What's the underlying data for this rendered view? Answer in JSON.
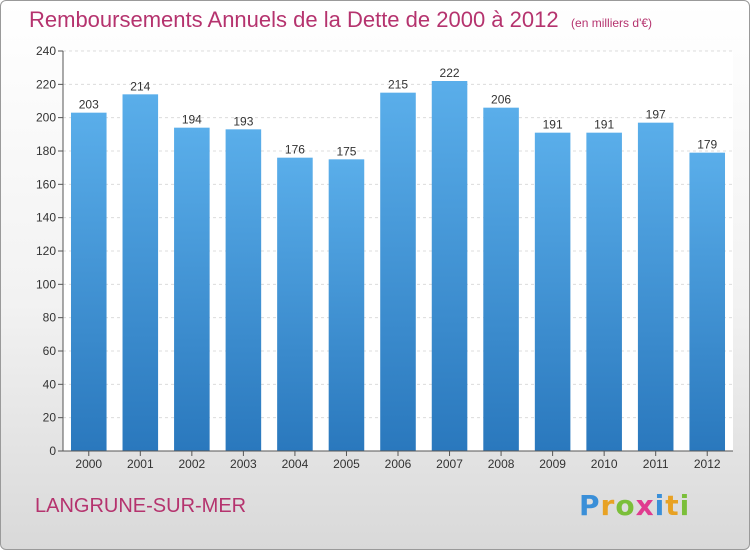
{
  "chart_data": {
    "type": "bar",
    "title": "Remboursements Annuels de la Dette de 2000 à 2012",
    "unit_note": "(en milliers d'€)",
    "categories": [
      "2000",
      "2001",
      "2002",
      "2003",
      "2004",
      "2005",
      "2006",
      "2007",
      "2008",
      "2009",
      "2010",
      "2011",
      "2012"
    ],
    "values": [
      203,
      214,
      194,
      193,
      176,
      175,
      215,
      222,
      206,
      191,
      191,
      197,
      179
    ],
    "ylim": [
      0,
      240
    ],
    "yticks": [
      0,
      20,
      40,
      60,
      80,
      100,
      120,
      140,
      160,
      180,
      200,
      220,
      240
    ],
    "grid": true,
    "bar_color_top": "#5aaeea",
    "bar_color_bottom": "#2a78bd"
  },
  "footer": {
    "commune": "LANGRUNE-SUR-MER",
    "logo_letters": [
      {
        "ch": "P",
        "color": "#3a8fd8"
      },
      {
        "ch": "r",
        "color": "#e8a224"
      },
      {
        "ch": "o",
        "color": "#7bbf3a"
      },
      {
        "ch": "x",
        "color": "#e03b8f"
      },
      {
        "ch": "i",
        "color": "#3a8fd8"
      },
      {
        "ch": "t",
        "color": "#e8a224"
      },
      {
        "ch": "i",
        "color": "#7bbf3a"
      }
    ]
  }
}
